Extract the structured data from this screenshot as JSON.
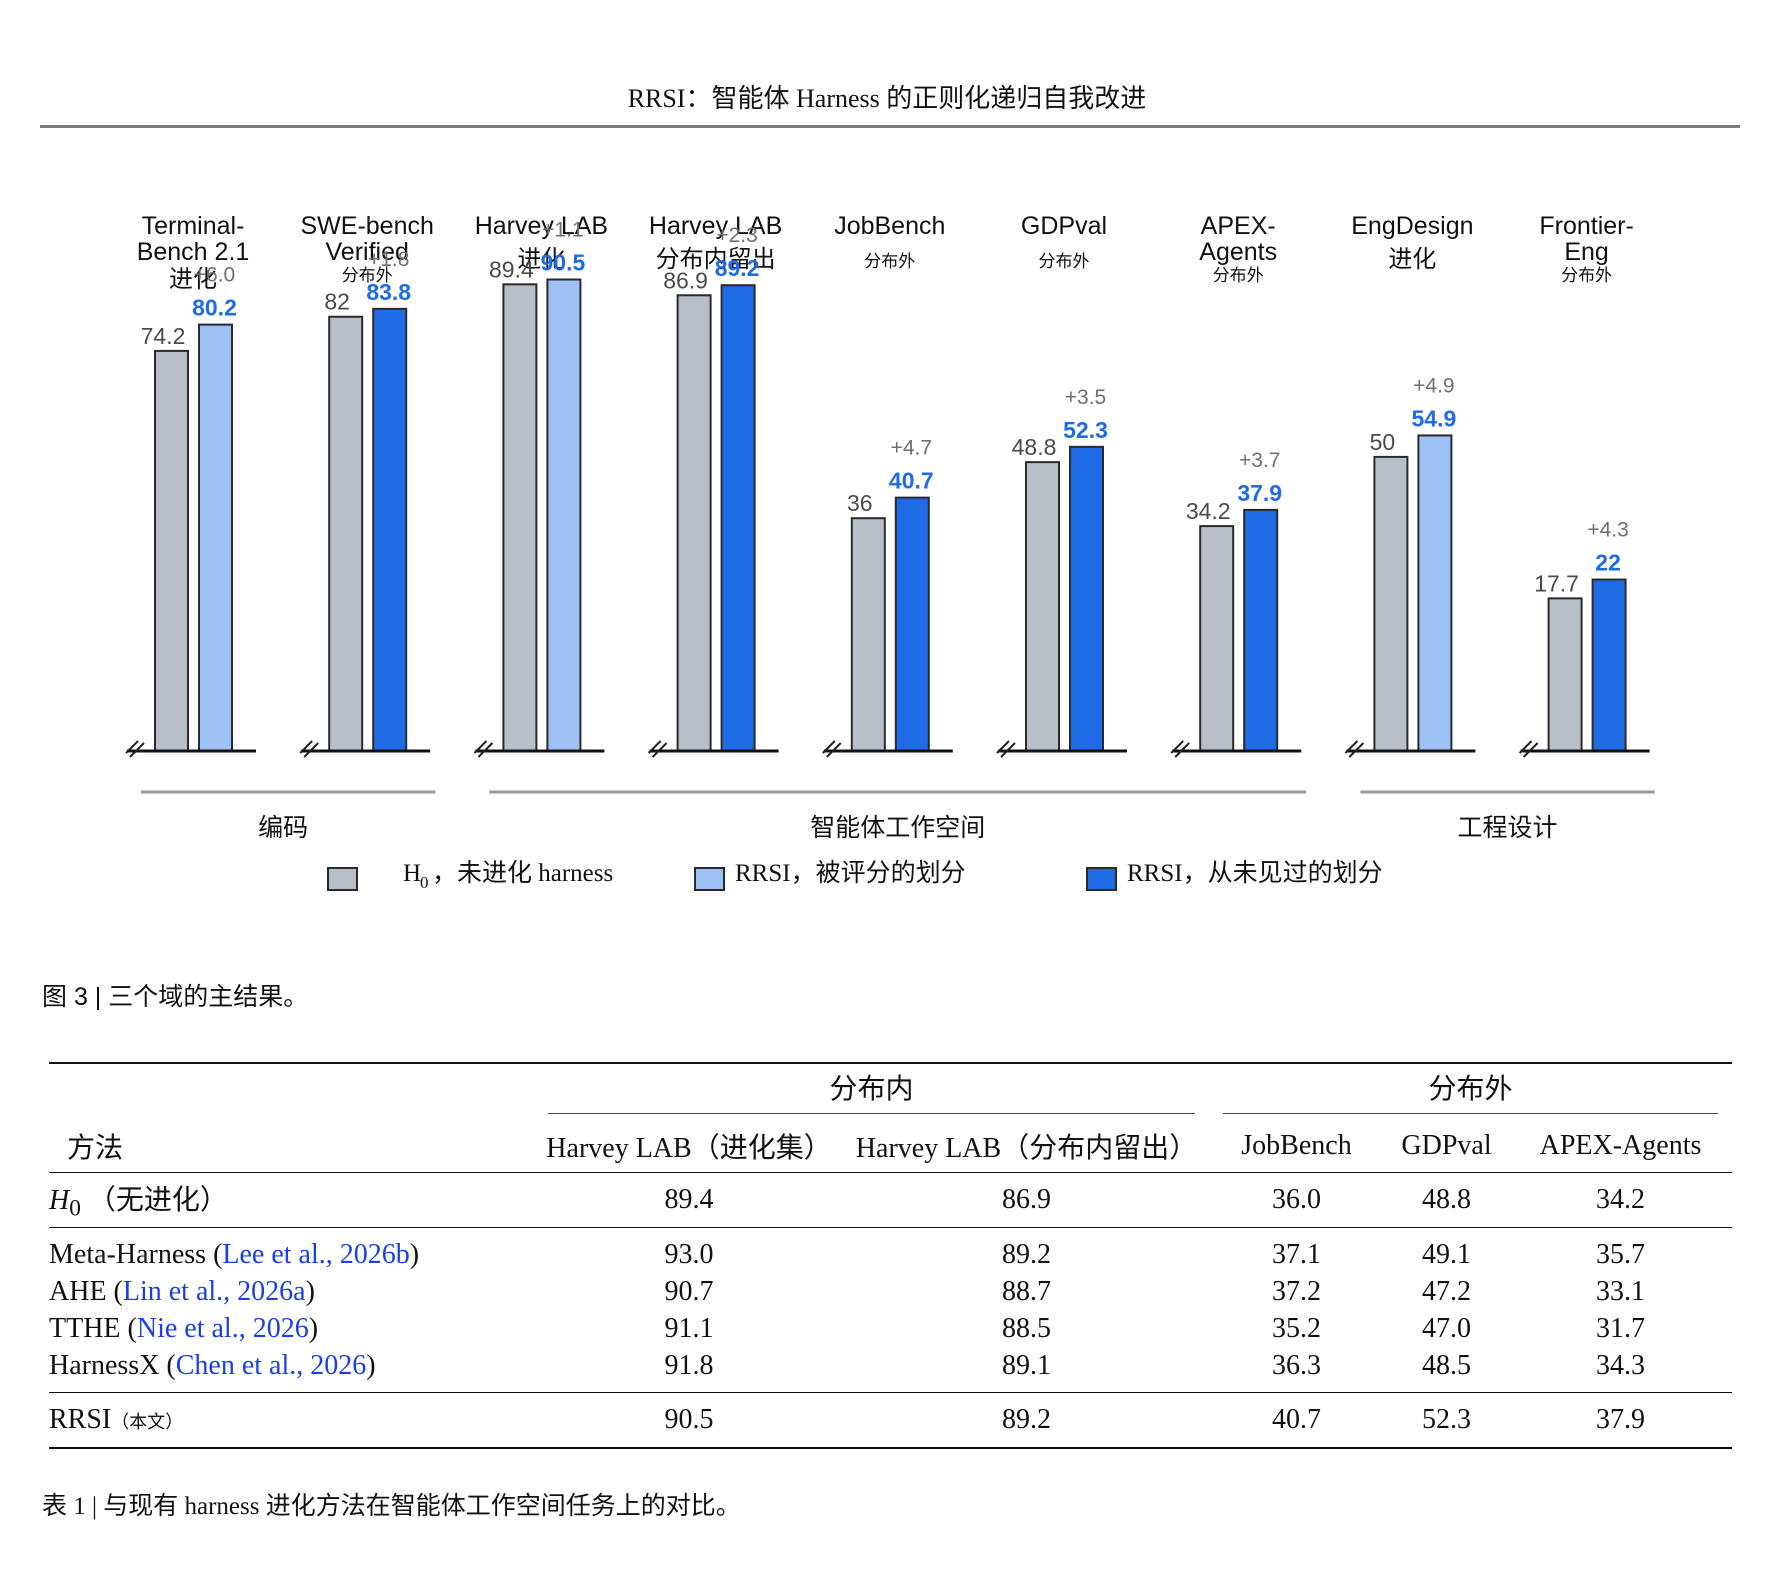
{
  "header": {
    "running_title": "RRSI：智能体 Harness 的正则化递归自我改进"
  },
  "chart_data": {
    "type": "bar",
    "panels": [
      {
        "title": [
          "Terminal-",
          "Bench 2.1"
        ],
        "subtitle": "进化",
        "baseline": 74.2,
        "rrsi": 80.2,
        "delta": "+6.0",
        "split": "evaluated"
      },
      {
        "title": [
          "SWE-bench",
          "Verified"
        ],
        "subtitle": "分布外",
        "baseline": 82.0,
        "rrsi": 83.8,
        "delta": "+1.8",
        "split": "unseen"
      },
      {
        "title": [
          "Harvey LAB"
        ],
        "subtitle": "进化",
        "baseline": 89.4,
        "rrsi": 90.5,
        "delta": "+1.1",
        "split": "evaluated"
      },
      {
        "title": [
          "Harvey LAB"
        ],
        "subtitle": "分布内留出",
        "baseline": 86.9,
        "rrsi": 89.2,
        "delta": "+2.3",
        "split": "unseen"
      },
      {
        "title": [
          "JobBench"
        ],
        "subtitle": "分布外",
        "baseline": 36.0,
        "rrsi": 40.7,
        "delta": "+4.7",
        "split": "unseen"
      },
      {
        "title": [
          "GDPval"
        ],
        "subtitle": "分布外",
        "baseline": 48.8,
        "rrsi": 52.3,
        "delta": "+3.5",
        "split": "unseen"
      },
      {
        "title": [
          "APEX-",
          "Agents"
        ],
        "subtitle": "分布外",
        "baseline": 34.2,
        "rrsi": 37.9,
        "delta": "+3.7",
        "split": "unseen"
      },
      {
        "title": [
          "EngDesign"
        ],
        "subtitle": "进化",
        "baseline": 50.0,
        "rrsi": 54.9,
        "delta": "+4.9",
        "split": "evaluated"
      },
      {
        "title": [
          "Frontier-",
          "Eng"
        ],
        "subtitle": "分布外",
        "baseline": 17.7,
        "rrsi": 22.0,
        "delta": "+4.3",
        "split": "unseen"
      }
    ],
    "groups": [
      {
        "label": "编码",
        "panels": [
          0,
          1
        ]
      },
      {
        "label": "智能体工作空间",
        "panels": [
          2,
          3,
          4,
          5,
          6
        ]
      },
      {
        "label": "工程设计",
        "panels": [
          7,
          8
        ]
      }
    ],
    "legend": [
      {
        "key": "baseline",
        "prefix": "H",
        "sub": "0",
        "label": "，未进化 harness"
      },
      {
        "key": "evaluated",
        "label": "RRSI，被评分的划分"
      },
      {
        "key": "unseen",
        "label": "RRSI，从未见过的划分"
      }
    ],
    "axis_break": true,
    "colors": {
      "baseline": "#b8bfc8",
      "evaluated": "#9dc0f5",
      "unseen": "#1f6be6",
      "value_label_rrsi": "#1f6be6",
      "value_label_base": "#4a4a4a",
      "delta": "#6f6f6f"
    }
  },
  "figure_caption": "图 3 | 三个域的主结果。",
  "table": {
    "group_in": "分布内",
    "group_out": "分布外",
    "method_header": "方法",
    "columns": [
      "Harvey LAB（进化集）",
      "Harvey LAB（分布内留出）",
      "JobBench",
      "GDPval",
      "APEX-Agents"
    ],
    "h0_row": {
      "symbol": "H",
      "sub": "0",
      "note": "（无进化）",
      "values": [
        "89.4",
        "86.9",
        "36.0",
        "48.8",
        "34.2"
      ]
    },
    "rows": [
      {
        "name": "Meta-Harness",
        "cite_authors": "Lee et al.",
        "cite_year": "2026b",
        "values": [
          "93.0",
          "89.2",
          "37.1",
          "49.1",
          "35.7"
        ],
        "bold": [
          true,
          false,
          false,
          false,
          false
        ]
      },
      {
        "name": "AHE",
        "cite_authors": "Lin et al.",
        "cite_year": "2026a",
        "values": [
          "90.7",
          "88.7",
          "37.2",
          "47.2",
          "33.1"
        ],
        "bold": [
          false,
          false,
          false,
          false,
          false
        ]
      },
      {
        "name": "TTHE",
        "cite_authors": "Nie et al.",
        "cite_year": "2026",
        "values": [
          "91.1",
          "88.5",
          "35.2",
          "47.0",
          "31.7"
        ],
        "bold": [
          false,
          false,
          false,
          false,
          false
        ]
      },
      {
        "name": "HarnessX",
        "cite_authors": "Chen et al.",
        "cite_year": "2026",
        "values": [
          "91.8",
          "89.1",
          "36.3",
          "48.5",
          "34.3"
        ],
        "bold": [
          false,
          false,
          false,
          false,
          false
        ]
      }
    ],
    "rrsi_row": {
      "name": "RRSI",
      "note": "（本文）",
      "values": [
        "90.5",
        "89.2",
        "40.7",
        "52.3",
        "37.9"
      ],
      "bold": [
        false,
        true,
        true,
        true,
        true
      ]
    }
  },
  "table_caption": "表 1 | 与现有 harness 进化方法在智能体工作空间任务上的对比。"
}
